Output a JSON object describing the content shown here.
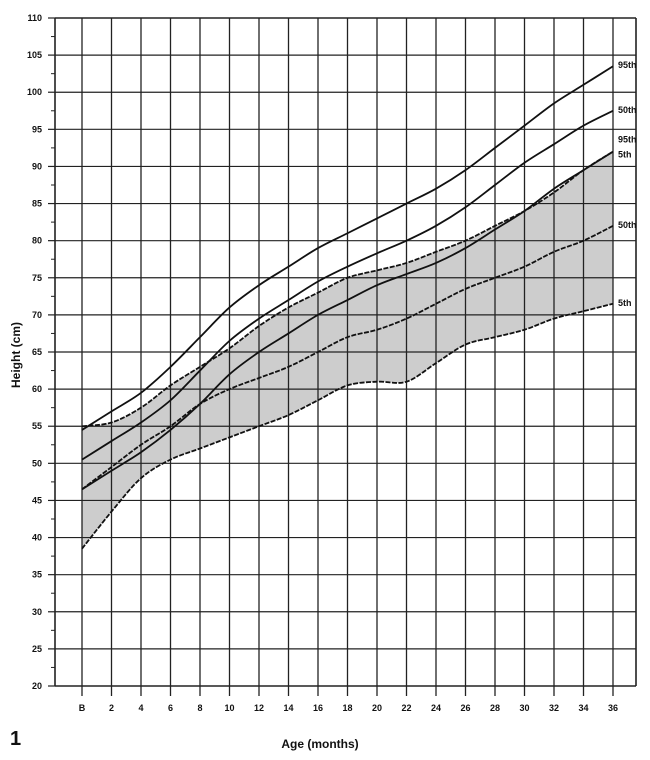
{
  "figure": {
    "number": "1"
  },
  "chart_data": {
    "type": "line",
    "title": "",
    "xlabel": "Age (months)",
    "ylabel": "Height (cm)",
    "xlim": [
      0,
      36
    ],
    "ylim": [
      20,
      110
    ],
    "grid": true,
    "x_tick_labels": [
      "B",
      "2",
      "4",
      "6",
      "8",
      "10",
      "12",
      "14",
      "16",
      "18",
      "20",
      "22",
      "24",
      "26",
      "28",
      "30",
      "32",
      "34",
      "36"
    ],
    "y_tick_labels": [
      "20",
      "25",
      "30",
      "35",
      "40",
      "45",
      "50",
      "55",
      "60",
      "65",
      "70",
      "75",
      "80",
      "85",
      "90",
      "95",
      "100",
      "105",
      "110"
    ],
    "x": [
      0,
      2,
      4,
      6,
      8,
      10,
      12,
      14,
      16,
      18,
      20,
      22,
      24,
      26,
      28,
      30,
      32,
      34,
      36
    ],
    "series": [
      {
        "name": "95th",
        "group": "reference (solid line)",
        "style": "solid",
        "values": [
          54.5,
          57,
          59.5,
          63,
          67,
          71,
          74,
          76.5,
          79,
          81,
          83,
          85,
          87,
          89.5,
          92.5,
          95.5,
          98.5,
          101,
          103.5
        ]
      },
      {
        "name": "50th",
        "group": "reference (solid line)",
        "style": "solid",
        "values": [
          50.5,
          53,
          55.5,
          58.5,
          62.5,
          66.5,
          69.5,
          72,
          74.5,
          76.5,
          78.3,
          80,
          82,
          84.5,
          87.5,
          90.5,
          93,
          95.5,
          97.5
        ]
      },
      {
        "name": "5th",
        "group": "reference (solid line)",
        "style": "solid",
        "values": [
          46.5,
          49,
          51.5,
          54.5,
          58,
          62,
          65,
          67.5,
          70,
          72,
          74,
          75.5,
          77,
          79,
          81.5,
          84,
          87,
          89.5,
          92
        ]
      },
      {
        "name": "95th",
        "group": "shaded band (dashed line)",
        "style": "dashed",
        "values": [
          55,
          55.5,
          57.5,
          60.5,
          63,
          65.5,
          68.5,
          71,
          73,
          75,
          76,
          77,
          78.5,
          80,
          82,
          84,
          86.5,
          89.5,
          92
        ]
      },
      {
        "name": "50th",
        "group": "shaded band (dashed line)",
        "style": "dashed",
        "values": [
          46.5,
          49.5,
          52.5,
          55,
          58,
          60,
          61.5,
          63,
          65,
          67,
          68,
          69.5,
          71.5,
          73.5,
          75,
          76.5,
          78.5,
          80,
          82
        ]
      },
      {
        "name": "5th",
        "group": "shaded band (dashed line)",
        "style": "dashed",
        "values": [
          38.5,
          43.5,
          48,
          50.5,
          52,
          53.5,
          55,
          56.5,
          58.5,
          60.5,
          61,
          61,
          63.5,
          66,
          67,
          68,
          69.5,
          70.5,
          71.5
        ]
      }
    ],
    "end_labels": [
      {
        "text": "95th",
        "y_value": 103.5
      },
      {
        "text": "50th",
        "y_value": 97.5
      },
      {
        "text": "95th",
        "y_value": 93.5
      },
      {
        "text": "5th",
        "y_value": 91.5
      },
      {
        "text": "50th",
        "y_value": 82
      },
      {
        "text": "5th",
        "y_value": 71.5
      }
    ],
    "band_fill_color": "#c8c8c8",
    "line_color": "#111111"
  }
}
